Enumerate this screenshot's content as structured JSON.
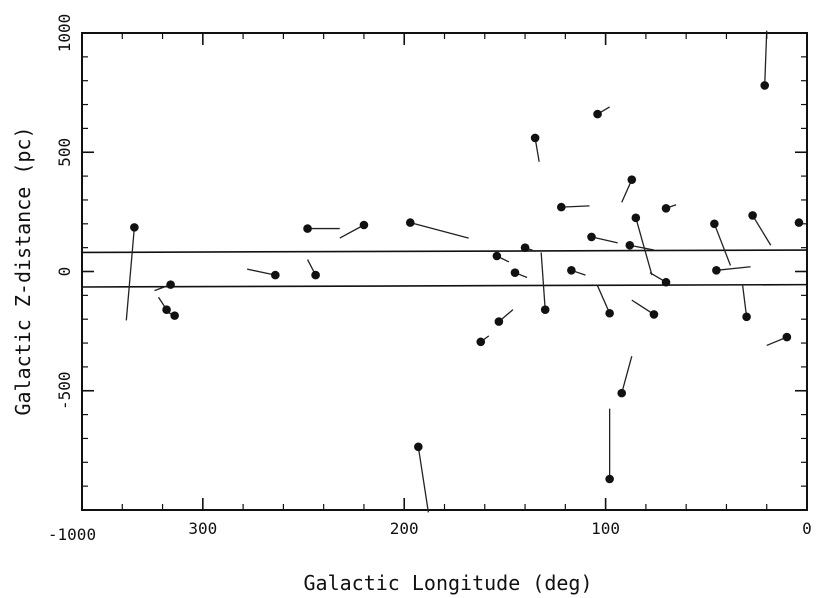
{
  "chart_data": {
    "type": "scatter",
    "xlabel": "Galactic Longitude (deg)",
    "ylabel": "Galactic Z-distance (pc)",
    "xlim": [
      360,
      0
    ],
    "ylim": [
      -1000,
      1000
    ],
    "x_reversed": true,
    "xticks": [
      300,
      200,
      100,
      0
    ],
    "yticks": [
      -1000,
      -500,
      0,
      500,
      1000
    ],
    "xtick_labels": [
      "300",
      "200",
      "100",
      "0"
    ],
    "ytick_labels": [
      "-1000",
      "-500",
      "0",
      "500",
      "1000"
    ],
    "bottom_left_corner_label": "-1000",
    "grid": false,
    "reference_lines": [
      {
        "x_start": 360,
        "x_end": 0,
        "y_start": 80,
        "y_end": 90
      },
      {
        "x_start": 360,
        "x_end": 0,
        "y_start": -65,
        "y_end": -55
      }
    ],
    "points": [
      {
        "x": 334,
        "y": 185,
        "vx": 338,
        "vy": -205
      },
      {
        "x": 318,
        "y": -160,
        "vx": 322,
        "vy": -108
      },
      {
        "x": 316,
        "y": -55,
        "vx": 324,
        "vy": -80
      },
      {
        "x": 314,
        "y": -185,
        "vx": 320,
        "vy": -160
      },
      {
        "x": 264,
        "y": -15,
        "vx": 278,
        "vy": 10
      },
      {
        "x": 248,
        "y": 180,
        "vx": 232,
        "vy": 180
      },
      {
        "x": 244,
        "y": -15,
        "vx": 248,
        "vy": 50
      },
      {
        "x": 220,
        "y": 195,
        "vx": 232,
        "vy": 140
      },
      {
        "x": 197,
        "y": 205,
        "vx": 168,
        "vy": 140
      },
      {
        "x": 193,
        "y": -735,
        "vx": 188,
        "vy": -1010
      },
      {
        "x": 162,
        "y": -295,
        "vx": 158,
        "vy": -270
      },
      {
        "x": 154,
        "y": 65,
        "vx": 148,
        "vy": 40
      },
      {
        "x": 153,
        "y": -210,
        "vx": 146,
        "vy": -160
      },
      {
        "x": 145,
        "y": -5,
        "vx": 139,
        "vy": -25
      },
      {
        "x": 140,
        "y": 100,
        "vx": 135,
        "vy": 85
      },
      {
        "x": 135,
        "y": 560,
        "vx": 133,
        "vy": 460
      },
      {
        "x": 130,
        "y": -160,
        "vx": 132,
        "vy": 80
      },
      {
        "x": 122,
        "y": 270,
        "vx": 108,
        "vy": 275
      },
      {
        "x": 117,
        "y": 5,
        "vx": 110,
        "vy": -15
      },
      {
        "x": 107,
        "y": 145,
        "vx": 94,
        "vy": 120
      },
      {
        "x": 104,
        "y": 660,
        "vx": 98,
        "vy": 690
      },
      {
        "x": 98,
        "y": -175,
        "vx": 104,
        "vy": -60
      },
      {
        "x": 98,
        "y": -870,
        "vx": 98,
        "vy": -575
      },
      {
        "x": 92,
        "y": -510,
        "vx": 87,
        "vy": -355
      },
      {
        "x": 88,
        "y": 110,
        "vx": 76,
        "vy": 90
      },
      {
        "x": 87,
        "y": 385,
        "vx": 92,
        "vy": 290
      },
      {
        "x": 85,
        "y": 225,
        "vx": 77,
        "vy": -15
      },
      {
        "x": 76,
        "y": -180,
        "vx": 87,
        "vy": -120
      },
      {
        "x": 70,
        "y": -45,
        "vx": 78,
        "vy": -5
      },
      {
        "x": 70,
        "y": 265,
        "vx": 65,
        "vy": 280
      },
      {
        "x": 46,
        "y": 200,
        "vx": 38,
        "vy": 25
      },
      {
        "x": 45,
        "y": 5,
        "vx": 28,
        "vy": 20
      },
      {
        "x": 30,
        "y": -190,
        "vx": 32,
        "vy": -55
      },
      {
        "x": 27,
        "y": 235,
        "vx": 18,
        "vy": 110
      },
      {
        "x": 21,
        "y": 780,
        "vx": 20,
        "vy": 1010
      },
      {
        "x": 10,
        "y": -275,
        "vx": 20,
        "vy": -310
      },
      {
        "x": 4,
        "y": 205,
        "vx": 4,
        "vy": 205
      }
    ]
  }
}
